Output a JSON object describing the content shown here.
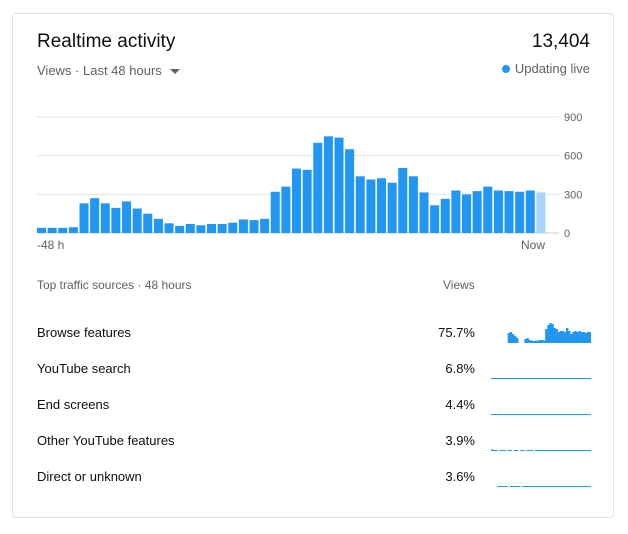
{
  "header": {
    "title": "Realtime activity",
    "total": "13,404",
    "metric_label": "Views · Last 48 hours",
    "live_label": "Updating live"
  },
  "colors": {
    "bar": "#2196f3",
    "bar_current": "#a8d4fb",
    "grid": "#e5e5e5",
    "live_dot": "#2196f3",
    "text_secondary": "#606060"
  },
  "chart_data": {
    "type": "bar",
    "x_start_label": "-48 h",
    "x_end_label": "Now",
    "yticks": [
      0,
      300,
      600,
      900
    ],
    "ylim": [
      0,
      900
    ],
    "values": [
      40,
      40,
      40,
      45,
      230,
      270,
      230,
      195,
      245,
      190,
      150,
      110,
      75,
      55,
      70,
      60,
      70,
      70,
      80,
      105,
      100,
      110,
      320,
      360,
      500,
      490,
      700,
      750,
      740,
      650,
      440,
      415,
      425,
      390,
      505,
      440,
      315,
      215,
      265,
      330,
      300,
      325,
      360,
      330,
      325,
      320,
      330,
      315
    ],
    "current_index": 47
  },
  "sources": {
    "header": "Top traffic sources · 48 hours",
    "views_header": "Views",
    "items": [
      {
        "label": "Browse features",
        "pct": "75.7%",
        "spark": [
          0,
          0,
          0,
          0,
          0,
          0,
          0,
          0,
          0.5,
          0.55,
          0.45,
          0.35,
          0.25,
          0,
          0,
          0,
          0.2,
          0.25,
          0.15,
          0.12,
          0.1,
          0.12,
          0.12,
          0.15,
          0.15,
          0.12,
          0.7,
          0.9,
          1.0,
          0.95,
          0.75,
          0.7,
          0.55,
          0.6,
          0.6,
          0.55,
          0.75,
          0.6,
          0.45,
          0.55,
          0.6,
          0.55,
          0.6,
          0.55,
          0.55,
          0.5,
          0.55,
          0.55
        ]
      },
      {
        "label": "YouTube search",
        "pct": "6.8%",
        "spark": [
          0.05,
          0.05,
          0.05,
          0.05,
          0.05,
          0.05,
          0.05,
          0.05,
          0.05,
          0.05,
          0.05,
          0.05,
          0.05,
          0.05,
          0.05,
          0.05,
          0.05,
          0.05,
          0.05,
          0.05,
          0.05,
          0.05,
          0.05,
          0.05,
          0.05,
          0.05,
          0.05,
          0.05,
          0.05,
          0.05,
          0.05,
          0.05,
          0.05,
          0.05,
          0.05,
          0.05,
          0.05,
          0.05,
          0.05,
          0.05,
          0.05,
          0.05,
          0.05,
          0.05,
          0.05,
          0.05,
          0.05,
          0.05
        ]
      },
      {
        "label": "End screens",
        "pct": "4.4%",
        "spark": [
          0.05,
          0.05,
          0.05,
          0.05,
          0.05,
          0.05,
          0.05,
          0.05,
          0.05,
          0.05,
          0.05,
          0.05,
          0.05,
          0.05,
          0.05,
          0.05,
          0.05,
          0.05,
          0.05,
          0.05,
          0.05,
          0.05,
          0.05,
          0.05,
          0.05,
          0.05,
          0.05,
          0.05,
          0.05,
          0.05,
          0.05,
          0.05,
          0.05,
          0.05,
          0.05,
          0.05,
          0.05,
          0.05,
          0.05,
          0.05,
          0.05,
          0.05,
          0.05,
          0.05,
          0.05,
          0.05,
          0.05,
          0.05
        ]
      },
      {
        "label": "Other YouTube features",
        "pct": "3.9%",
        "spark": [
          0.08,
          0.05,
          0.05,
          0,
          0.05,
          0.05,
          0.05,
          0,
          0.05,
          0.05,
          0,
          0.05,
          0.05,
          0,
          0.05,
          0.05,
          0,
          0.05,
          0.05,
          0.05,
          0,
          0.05,
          0.05,
          0.05,
          0.05,
          0.05,
          0.05,
          0.05,
          0.05,
          0.05,
          0.05,
          0.05,
          0.05,
          0.05,
          0.05,
          0.05,
          0.05,
          0.05,
          0.05,
          0.05,
          0.05,
          0.05,
          0.05,
          0.05,
          0.05,
          0.05,
          0.05,
          0.05
        ]
      },
      {
        "label": "Direct or unknown",
        "pct": "3.6%",
        "spark": [
          0,
          0,
          0,
          0.05,
          0.05,
          0.05,
          0.05,
          0.05,
          0,
          0.05,
          0.05,
          0.05,
          0.05,
          0.05,
          0,
          0.05,
          0.05,
          0.05,
          0.05,
          0.05,
          0.05,
          0.05,
          0.05,
          0.05,
          0.05,
          0.05,
          0.05,
          0.05,
          0.05,
          0.05,
          0.05,
          0.05,
          0.05,
          0.05,
          0.05,
          0.05,
          0.05,
          0.05,
          0.05,
          0.05,
          0.05,
          0.05,
          0.05,
          0.05,
          0.05,
          0.05,
          0.05,
          0.05
        ]
      }
    ]
  }
}
